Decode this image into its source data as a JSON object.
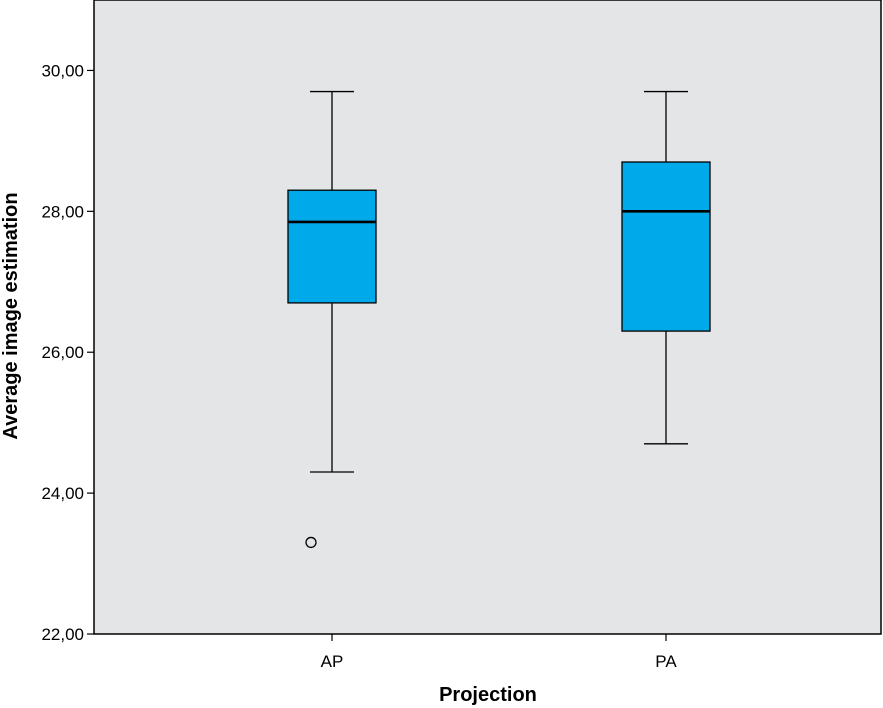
{
  "chart_data": {
    "type": "boxplot",
    "xlabel": "Projection",
    "ylabel": "Average image estimation",
    "ylim": [
      22,
      31
    ],
    "yticks": [
      {
        "value": 22,
        "label": "22,00"
      },
      {
        "value": 24,
        "label": "24,00"
      },
      {
        "value": 26,
        "label": "26,00"
      },
      {
        "value": 28,
        "label": "28,00"
      },
      {
        "value": 30,
        "label": "30,00"
      }
    ],
    "categories": [
      "AP",
      "PA"
    ],
    "boxes": [
      {
        "category": "AP",
        "min": 24.3,
        "q1": 26.7,
        "median": 27.85,
        "q3": 28.3,
        "max": 29.7,
        "outliers": [
          23.3
        ]
      },
      {
        "category": "PA",
        "min": 24.7,
        "q1": 26.3,
        "median": 28.0,
        "q3": 28.7,
        "max": 29.7,
        "outliers": []
      }
    ],
    "grid": false,
    "colors": {
      "plot_background": "#e4e5e7",
      "box_fill": "#00a9ea",
      "line": "#000000"
    }
  }
}
